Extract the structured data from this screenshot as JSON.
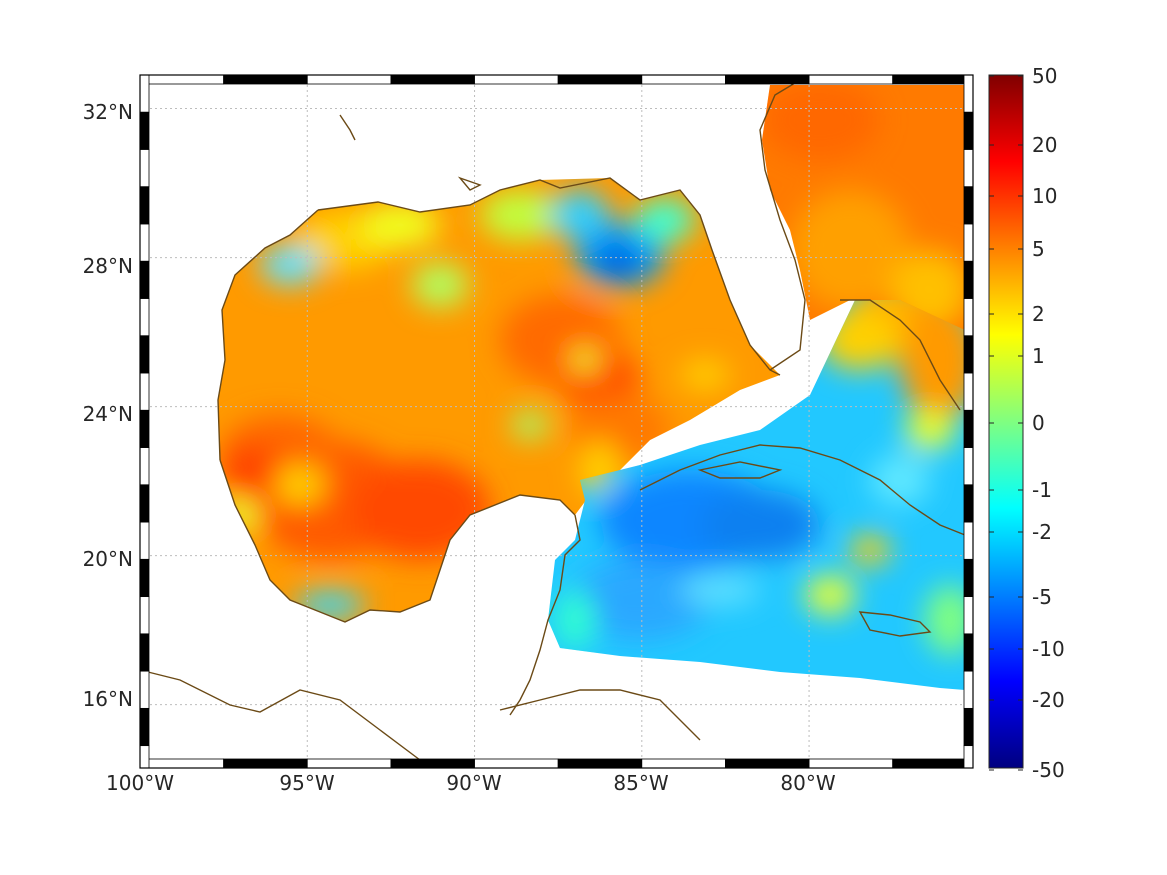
{
  "map": {
    "lat_ticks": [
      "32°N",
      "28°N",
      "24°N",
      "20°N",
      "16°N"
    ],
    "lon_ticks": [
      "100°W",
      "95°W",
      "90°W",
      "85°W",
      "80°W"
    ],
    "extent": {
      "lon_min": -100,
      "lon_max": -75.1,
      "lat_min": 14.3,
      "lat_max": 32.9
    },
    "grid": "dotted",
    "frame": "black-white checker",
    "coastline_color": "#6b4a16",
    "colormap": "jet"
  },
  "colorbar": {
    "tick_labels": [
      "50",
      "20",
      "10",
      "5",
      "2",
      "1",
      "0",
      "-1",
      "-2",
      "-5",
      "-10",
      "-20",
      "-50"
    ],
    "colors_top_to_bottom": [
      "#800000",
      "#ff0000",
      "#ff8000",
      "#ffff00",
      "#80ff80",
      "#00ffff",
      "#0080ff",
      "#0000ff",
      "#000080"
    ]
  }
}
